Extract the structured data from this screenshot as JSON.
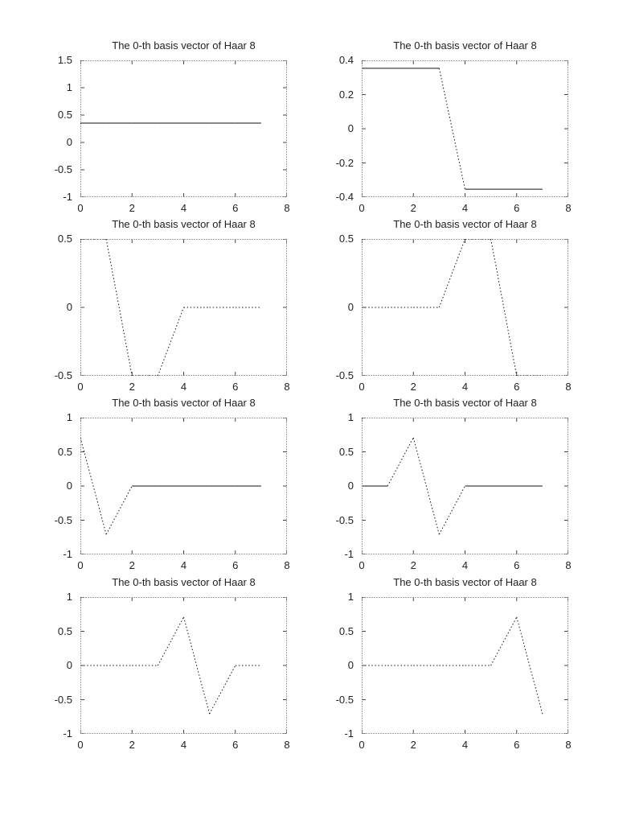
{
  "page": {
    "background": "#ffffff",
    "text_color": "#222222"
  },
  "chart_data": [
    {
      "type": "line",
      "title": "The 0-th basis vector of Haar 8",
      "x": [
        0,
        1,
        2,
        3,
        4,
        5,
        6,
        7
      ],
      "values": [
        0.3536,
        0.3536,
        0.3536,
        0.3536,
        0.3536,
        0.3536,
        0.3536,
        0.3536
      ],
      "segment_styles": [
        "s",
        "s",
        "s",
        "s",
        "s",
        "s",
        "s"
      ],
      "xlim": [
        0,
        8
      ],
      "ylim": [
        -1,
        1.5
      ],
      "xticks": [
        0,
        2,
        4,
        6,
        8
      ],
      "xtick_labels": [
        "0",
        "2",
        "4",
        "6",
        "8"
      ],
      "yticks": [
        1.5,
        1,
        0.5,
        0,
        -0.5,
        -1
      ],
      "ytick_labels": [
        "1.5",
        "1",
        "0.5",
        "0",
        "-0.5",
        "-1"
      ],
      "line_color": "#111111",
      "frame_color": "#444444",
      "grid": false,
      "legend": null
    },
    {
      "type": "line",
      "title": "The 0-th basis vector of Haar 8",
      "x": [
        0,
        1,
        2,
        3,
        4,
        5,
        6,
        7
      ],
      "values": [
        0.3536,
        0.3536,
        0.3536,
        0.3536,
        -0.3536,
        -0.3536,
        -0.3536,
        -0.3536
      ],
      "segment_styles": [
        "s",
        "s",
        "s",
        "d",
        "s",
        "s",
        "s"
      ],
      "xlim": [
        0,
        8
      ],
      "ylim": [
        -0.4,
        0.4
      ],
      "xticks": [
        0,
        2,
        4,
        6,
        8
      ],
      "xtick_labels": [
        "0",
        "2",
        "4",
        "6",
        "8"
      ],
      "yticks": [
        0.4,
        0.2,
        0,
        -0.2,
        -0.4
      ],
      "ytick_labels": [
        "0.4",
        "0.2",
        "0",
        "-0.2",
        "-0.4"
      ],
      "line_color": "#111111",
      "frame_color": "#444444",
      "grid": false,
      "legend": null
    },
    {
      "type": "line",
      "title": "The 0-th basis vector of Haar 8",
      "x": [
        0,
        1,
        2,
        3,
        4,
        5,
        6,
        7
      ],
      "values": [
        0.5,
        0.5,
        -0.5,
        -0.5,
        0,
        0,
        0,
        0
      ],
      "segment_styles": [
        "d",
        "d",
        "d",
        "d",
        "d",
        "d",
        "d"
      ],
      "xlim": [
        0,
        8
      ],
      "ylim": [
        -0.5,
        0.5
      ],
      "xticks": [
        0,
        2,
        4,
        6,
        8
      ],
      "xtick_labels": [
        "0",
        "2",
        "4",
        "6",
        "8"
      ],
      "yticks": [
        0.5,
        0,
        -0.5
      ],
      "ytick_labels": [
        "0.5",
        "0",
        "-0.5"
      ],
      "line_color": "#111111",
      "frame_color": "#444444",
      "grid": false,
      "legend": null
    },
    {
      "type": "line",
      "title": "The 0-th basis vector of Haar 8",
      "x": [
        0,
        1,
        2,
        3,
        4,
        5,
        6,
        7
      ],
      "values": [
        0,
        0,
        0,
        0,
        0.5,
        0.5,
        -0.5,
        -0.5
      ],
      "segment_styles": [
        "d",
        "d",
        "d",
        "d",
        "d",
        "d",
        "d"
      ],
      "xlim": [
        0,
        8
      ],
      "ylim": [
        -0.5,
        0.5
      ],
      "xticks": [
        0,
        2,
        4,
        6,
        8
      ],
      "xtick_labels": [
        "0",
        "2",
        "4",
        "6",
        "8"
      ],
      "yticks": [
        0.5,
        0,
        -0.5
      ],
      "ytick_labels": [
        "0.5",
        "0",
        "-0.5"
      ],
      "line_color": "#111111",
      "frame_color": "#444444",
      "grid": false,
      "legend": null
    },
    {
      "type": "line",
      "title": "The 0-th basis vector of Haar 8",
      "x": [
        0,
        1,
        2,
        3,
        4,
        5,
        6,
        7
      ],
      "values": [
        0.7071,
        -0.7071,
        0,
        0,
        0,
        0,
        0,
        0
      ],
      "segment_styles": [
        "d",
        "d",
        "s",
        "s",
        "s",
        "s",
        "s"
      ],
      "xlim": [
        0,
        8
      ],
      "ylim": [
        -1,
        1
      ],
      "xticks": [
        0,
        2,
        4,
        6,
        8
      ],
      "xtick_labels": [
        "0",
        "2",
        "4",
        "6",
        "8"
      ],
      "yticks": [
        1,
        0.5,
        0,
        -0.5,
        -1
      ],
      "ytick_labels": [
        "1",
        "0.5",
        "0",
        "-0.5",
        "-1"
      ],
      "line_color": "#111111",
      "frame_color": "#444444",
      "grid": false,
      "legend": null
    },
    {
      "type": "line",
      "title": "The 0-th basis vector of Haar 8",
      "x": [
        0,
        1,
        2,
        3,
        4,
        5,
        6,
        7
      ],
      "values": [
        0,
        0,
        0.7071,
        -0.7071,
        0,
        0,
        0,
        0
      ],
      "segment_styles": [
        "s",
        "d",
        "d",
        "d",
        "s",
        "s",
        "s"
      ],
      "xlim": [
        0,
        8
      ],
      "ylim": [
        -1,
        1
      ],
      "xticks": [
        0,
        2,
        4,
        6,
        8
      ],
      "xtick_labels": [
        "0",
        "2",
        "4",
        "6",
        "8"
      ],
      "yticks": [
        1,
        0.5,
        0,
        -0.5,
        -1
      ],
      "ytick_labels": [
        "1",
        "0.5",
        "0",
        "-0.5",
        "-1"
      ],
      "line_color": "#111111",
      "frame_color": "#444444",
      "grid": false,
      "legend": null
    },
    {
      "type": "line",
      "title": "The 0-th basis vector of Haar 8",
      "x": [
        0,
        1,
        2,
        3,
        4,
        5,
        6,
        7
      ],
      "values": [
        0,
        0,
        0,
        0,
        0.7071,
        -0.7071,
        0,
        0
      ],
      "segment_styles": [
        "d",
        "d",
        "d",
        "d",
        "d",
        "d",
        "d"
      ],
      "xlim": [
        0,
        8
      ],
      "ylim": [
        -1,
        1
      ],
      "xticks": [
        0,
        2,
        4,
        6,
        8
      ],
      "xtick_labels": [
        "0",
        "2",
        "4",
        "6",
        "8"
      ],
      "yticks": [
        1,
        0.5,
        0,
        -0.5,
        -1
      ],
      "ytick_labels": [
        "1",
        "0.5",
        "0",
        "-0.5",
        "-1"
      ],
      "line_color": "#111111",
      "frame_color": "#444444",
      "grid": false,
      "legend": null
    },
    {
      "type": "line",
      "title": "The 0-th basis vector of Haar 8",
      "x": [
        0,
        1,
        2,
        3,
        4,
        5,
        6,
        7
      ],
      "values": [
        0,
        0,
        0,
        0,
        0,
        0,
        0.7071,
        -0.7071
      ],
      "segment_styles": [
        "d",
        "d",
        "d",
        "d",
        "d",
        "d",
        "d"
      ],
      "xlim": [
        0,
        8
      ],
      "ylim": [
        -1,
        1
      ],
      "xticks": [
        0,
        2,
        4,
        6,
        8
      ],
      "xtick_labels": [
        "0",
        "2",
        "4",
        "6",
        "8"
      ],
      "yticks": [
        1,
        0.5,
        0,
        -0.5,
        -1
      ],
      "ytick_labels": [
        "1",
        "0.5",
        "0",
        "-0.5",
        "-1"
      ],
      "line_color": "#111111",
      "frame_color": "#444444",
      "grid": false,
      "legend": null
    }
  ]
}
